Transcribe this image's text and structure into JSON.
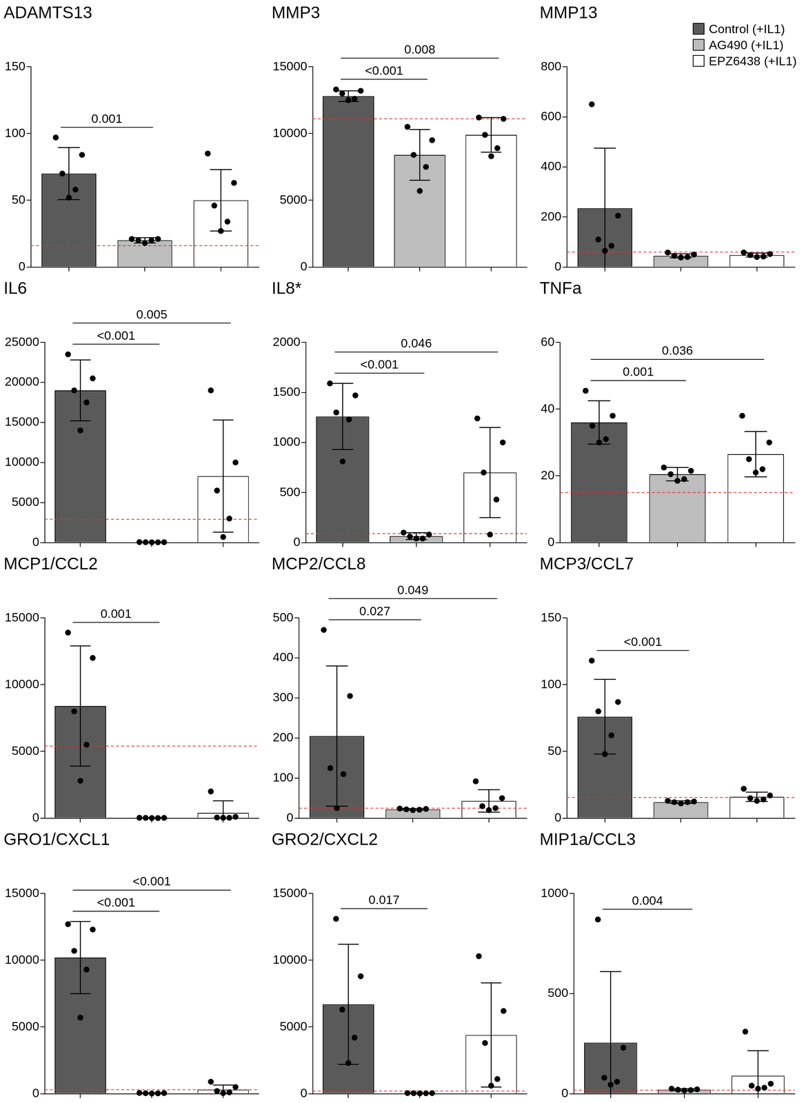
{
  "chart_data": [
    {
      "type": "bar",
      "title": "ADAMTS13",
      "categories": [
        "Control (+IL1)",
        "AG490 (+IL1)",
        "EPZ6438 (+IL1)"
      ],
      "colors": [
        "#5a5a5a",
        "#bdbdbd",
        "#ffffff"
      ],
      "values": [
        70,
        20,
        50
      ],
      "errors": [
        19.5,
        2,
        23
      ],
      "points": [
        [
          97,
          84,
          70,
          58,
          52
        ],
        [
          21,
          21,
          20,
          20,
          18
        ],
        [
          85,
          63,
          46,
          34,
          27
        ]
      ],
      "reference_line": 16,
      "comparisons": [
        {
          "from": 0,
          "to": 1,
          "label": "0.001"
        }
      ],
      "ylim": [
        0,
        150
      ],
      "yticks": [
        0,
        50,
        100,
        150
      ],
      "grid": false,
      "tick_labels": "y"
    },
    {
      "type": "bar",
      "title": "MMP3",
      "categories": [
        "Control (+IL1)",
        "AG490 (+IL1)",
        "EPZ6438 (+IL1)"
      ],
      "colors": [
        "#5a5a5a",
        "#bdbdbd",
        "#ffffff"
      ],
      "values": [
        12800,
        8400,
        9900
      ],
      "errors": [
        400,
        1900,
        1300
      ],
      "points": [
        [
          13300,
          13200,
          13000,
          12600,
          12500
        ],
        [
          10500,
          9500,
          8400,
          7500,
          5700
        ],
        [
          11200,
          11100,
          9900,
          8900,
          8300
        ]
      ],
      "reference_line": 11100,
      "comparisons": [
        {
          "from": 0,
          "to": 1,
          "label": "<0.001"
        },
        {
          "from": 0,
          "to": 2,
          "label": "0.008"
        }
      ],
      "ylim": [
        0,
        15000
      ],
      "yticks": [
        0,
        5000,
        10000,
        15000
      ],
      "grid": false,
      "tick_labels": "y"
    },
    {
      "type": "bar",
      "title": "MMP13",
      "categories": [
        "Control (+IL1)",
        "AG490 (+IL1)",
        "EPZ6438 (+IL1)"
      ],
      "colors": [
        "#5a5a5a",
        "#bdbdbd",
        "#ffffff"
      ],
      "values": [
        235,
        45,
        48
      ],
      "errors": [
        240,
        8,
        8
      ],
      "points": [
        [
          650,
          205,
          110,
          85,
          65
        ],
        [
          58,
          50,
          45,
          40,
          38
        ],
        [
          58,
          52,
          48,
          42,
          40
        ]
      ],
      "reference_line": 60,
      "comparisons": [],
      "ylim": [
        0,
        800
      ],
      "yticks": [
        0,
        200,
        400,
        600,
        800
      ],
      "grid": false,
      "tick_labels": "y",
      "legend": "top-right"
    },
    {
      "type": "bar",
      "title": "IL6",
      "categories": [
        "Control (+IL1)",
        "AG490 (+IL1)",
        "EPZ6438 (+IL1)"
      ],
      "colors": [
        "#5a5a5a",
        "#bdbdbd",
        "#ffffff"
      ],
      "values": [
        19000,
        50,
        8300
      ],
      "errors": [
        3800,
        20,
        7000
      ],
      "points": [
        [
          23500,
          20500,
          19000,
          17500,
          14000
        ],
        [
          60,
          50,
          50,
          40,
          40
        ],
        [
          19000,
          10000,
          6500,
          3000,
          700
        ]
      ],
      "reference_line": 2900,
      "comparisons": [
        {
          "from": 0,
          "to": 1,
          "label": "<0.001"
        },
        {
          "from": 0,
          "to": 2,
          "label": "0.005"
        }
      ],
      "ylim": [
        0,
        25000
      ],
      "yticks": [
        0,
        5000,
        10000,
        15000,
        20000,
        25000
      ],
      "grid": false,
      "tick_labels": "y"
    },
    {
      "type": "bar",
      "title": "IL8*",
      "categories": [
        "Control (+IL1)",
        "AG490 (+IL1)",
        "EPZ6438 (+IL1)"
      ],
      "colors": [
        "#5a5a5a",
        "#bdbdbd",
        "#ffffff"
      ],
      "values": [
        1260,
        65,
        700
      ],
      "errors": [
        330,
        35,
        450
      ],
      "points": [
        [
          1590,
          1470,
          1300,
          1230,
          810
        ],
        [
          100,
          80,
          60,
          40,
          40
        ],
        [
          1240,
          1000,
          700,
          430,
          80
        ]
      ],
      "reference_line": 90,
      "comparisons": [
        {
          "from": 0,
          "to": 1,
          "label": "<0.001"
        },
        {
          "from": 0,
          "to": 2,
          "label": "0.046"
        }
      ],
      "ylim": [
        0,
        2000
      ],
      "yticks": [
        0,
        500,
        1000,
        1500,
        2000
      ],
      "grid": false,
      "tick_labels": "y"
    },
    {
      "type": "bar",
      "title": "TNFa",
      "categories": [
        "Control (+IL1)",
        "AG490 (+IL1)",
        "EPZ6438 (+IL1)"
      ],
      "colors": [
        "#5a5a5a",
        "#bdbdbd",
        "#ffffff"
      ],
      "values": [
        36,
        20.5,
        26.5
      ],
      "errors": [
        6.5,
        2,
        6.8
      ],
      "points": [
        [
          45.5,
          38,
          35,
          31,
          30
        ],
        [
          22.5,
          21.5,
          20.5,
          19,
          18.5
        ],
        [
          38,
          30,
          25,
          22,
          21
        ]
      ],
      "reference_line": 15,
      "comparisons": [
        {
          "from": 0,
          "to": 1,
          "label": "0.001"
        },
        {
          "from": 0,
          "to": 2,
          "label": "0.036"
        }
      ],
      "ylim": [
        0,
        60
      ],
      "yticks": [
        0,
        20,
        40,
        60
      ],
      "grid": false,
      "tick_labels": "y"
    },
    {
      "type": "bar",
      "title": "MCP1/CCL2",
      "categories": [
        "Control (+IL1)",
        "AG490 (+IL1)",
        "EPZ6438 (+IL1)"
      ],
      "colors": [
        "#5a5a5a",
        "#bdbdbd",
        "#ffffff"
      ],
      "values": [
        8400,
        20,
        400
      ],
      "errors": [
        4500,
        10,
        900
      ],
      "points": [
        [
          13900,
          12000,
          8000,
          5500,
          2800
        ],
        [
          30,
          20,
          20,
          10,
          10
        ],
        [
          2000,
          100,
          50,
          30,
          30
        ]
      ],
      "reference_line": 5400,
      "comparisons": [
        {
          "from": 0,
          "to": 1,
          "label": "0.001"
        }
      ],
      "ylim": [
        0,
        15000
      ],
      "yticks": [
        0,
        5000,
        10000,
        15000
      ],
      "grid": false,
      "tick_labels": "y"
    },
    {
      "type": "bar",
      "title": "MCP2/CCL8",
      "categories": [
        "Control (+IL1)",
        "AG490 (+IL1)",
        "EPZ6438 (+IL1)"
      ],
      "colors": [
        "#5a5a5a",
        "#bdbdbd",
        "#ffffff"
      ],
      "values": [
        205,
        22,
        43
      ],
      "errors": [
        175,
        2,
        28
      ],
      "points": [
        [
          470,
          305,
          125,
          110,
          25
        ],
        [
          24,
          23,
          22,
          21,
          20
        ],
        [
          92,
          50,
          30,
          25,
          20
        ]
      ],
      "reference_line": 25,
      "comparisons": [
        {
          "from": 0,
          "to": 1,
          "label": "0.027"
        },
        {
          "from": 0,
          "to": 2,
          "label": "0.049"
        }
      ],
      "ylim": [
        0,
        500
      ],
      "yticks": [
        0,
        100,
        200,
        300,
        400,
        500
      ],
      "grid": false,
      "tick_labels": "y"
    },
    {
      "type": "bar",
      "title": "MCP3/CCL7",
      "categories": [
        "Control (+IL1)",
        "AG490 (+IL1)",
        "EPZ6438 (+IL1)"
      ],
      "colors": [
        "#5a5a5a",
        "#bdbdbd",
        "#ffffff"
      ],
      "values": [
        76,
        12,
        16
      ],
      "errors": [
        28,
        1,
        3.5
      ],
      "points": [
        [
          118,
          87,
          80,
          62,
          48
        ],
        [
          13,
          12.5,
          12,
          12,
          11
        ],
        [
          22,
          17,
          15,
          14,
          13
        ]
      ],
      "reference_line": 15.5,
      "comparisons": [
        {
          "from": 0,
          "to": 1,
          "label": "<0.001"
        }
      ],
      "ylim": [
        0,
        150
      ],
      "yticks": [
        0,
        50,
        100,
        150
      ],
      "grid": false,
      "tick_labels": "y"
    },
    {
      "type": "bar",
      "title": "GRO1/CXCL1",
      "categories": [
        "Control (+IL1)",
        "AG490 (+IL1)",
        "EPZ6438 (+IL1)"
      ],
      "colors": [
        "#5a5a5a",
        "#bdbdbd",
        "#ffffff"
      ],
      "values": [
        10200,
        40,
        300
      ],
      "errors": [
        2700,
        20,
        350
      ],
      "points": [
        [
          12700,
          12300,
          10700,
          9300,
          5700
        ],
        [
          60,
          50,
          40,
          30,
          20
        ],
        [
          900,
          500,
          200,
          100,
          50
        ]
      ],
      "reference_line": 300,
      "comparisons": [
        {
          "from": 0,
          "to": 1,
          "label": "<0.001"
        },
        {
          "from": 0,
          "to": 2,
          "label": "<0.001"
        }
      ],
      "ylim": [
        0,
        15000
      ],
      "yticks": [
        0,
        5000,
        10000,
        15000
      ],
      "grid": false,
      "tick_labels": "y"
    },
    {
      "type": "bar",
      "title": "GRO2/CXCL2",
      "categories": [
        "Control (+IL1)",
        "AG490 (+IL1)",
        "EPZ6438 (+IL1)"
      ],
      "colors": [
        "#5a5a5a",
        "#bdbdbd",
        "#ffffff"
      ],
      "values": [
        6700,
        40,
        4400
      ],
      "errors": [
        4500,
        10,
        3900
      ],
      "points": [
        [
          13100,
          8800,
          6300,
          4200,
          2300
        ],
        [
          50,
          45,
          40,
          35,
          30
        ],
        [
          10300,
          6200,
          3800,
          1100,
          600
        ]
      ],
      "reference_line": 200,
      "comparisons": [
        {
          "from": 0,
          "to": 1,
          "label": "0.017"
        }
      ],
      "ylim": [
        0,
        15000
      ],
      "yticks": [
        0,
        5000,
        10000,
        15000
      ],
      "grid": false,
      "tick_labels": "y"
    },
    {
      "type": "bar",
      "title": "MIP1a/CCL3",
      "categories": [
        "Control (+IL1)",
        "AG490 (+IL1)",
        "EPZ6438 (+IL1)"
      ],
      "colors": [
        "#5a5a5a",
        "#bdbdbd",
        "#ffffff"
      ],
      "values": [
        255,
        20,
        90
      ],
      "errors": [
        355,
        5,
        125
      ],
      "points": [
        [
          870,
          230,
          80,
          60,
          45
        ],
        [
          25,
          22,
          20,
          18,
          16
        ],
        [
          310,
          50,
          40,
          30,
          25
        ]
      ],
      "reference_line": 18,
      "comparisons": [
        {
          "from": 0,
          "to": 1,
          "label": "0.004"
        }
      ],
      "ylim": [
        0,
        1000
      ],
      "yticks": [
        0,
        500,
        1000
      ],
      "grid": false,
      "tick_labels": "y"
    }
  ]
}
